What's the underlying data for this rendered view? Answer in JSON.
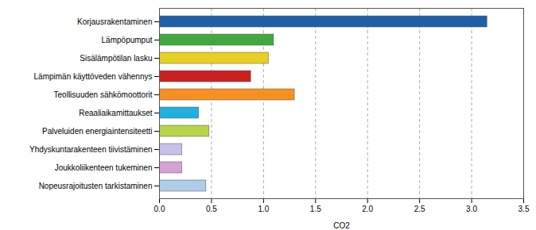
{
  "chart_data": {
    "type": "bar",
    "orientation": "horizontal",
    "categories": [
      "Nopeusrajoitusten tarkistaminen",
      "Joukkoliikenteen tukeminen",
      "Yhdyskuntarakenteen tiivistäminen",
      "Palveluiden energiaintensiteetti",
      "Reaaliaikamittaukset",
      "Teollisuuden sähkömoottorit",
      "Lämpimän käyttöveden vähennys",
      "Sisälämpötilan lasku",
      "Lämpöpumput",
      "Korjausrakentaminen"
    ],
    "values": [
      0.45,
      0.22,
      0.22,
      0.48,
      0.38,
      1.3,
      0.88,
      1.05,
      1.1,
      3.15
    ],
    "colors": [
      "#aecde8",
      "#d8a0d8",
      "#c8c0e8",
      "#b8d44a",
      "#20b0e0",
      "#f59020",
      "#cc2020",
      "#e8d020",
      "#40a840",
      "#2060a8"
    ],
    "xlabel": "CO2",
    "xlim": [
      0,
      3.5
    ],
    "xticks": [
      {
        "value": 0,
        "label": "0.0"
      },
      0.5,
      {
        "value": 1,
        "label": "1.0"
      },
      1.5,
      {
        "value": 2,
        "label": "2.0"
      },
      2.5,
      {
        "value": 3,
        "label": "3.0"
      },
      3.5
    ],
    "grid": true
  }
}
